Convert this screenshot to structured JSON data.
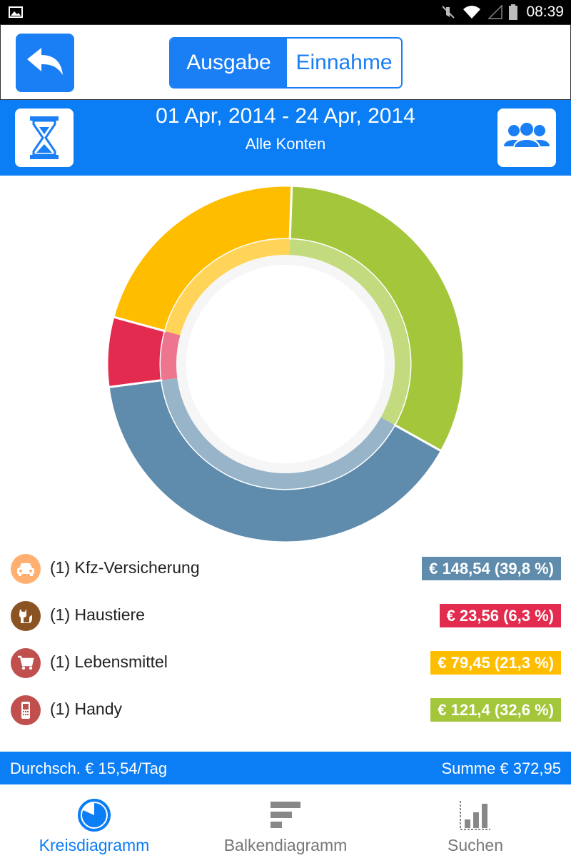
{
  "status_bar": {
    "time": "08:39"
  },
  "top_bar": {
    "tabs": [
      {
        "label": "Ausgabe",
        "active": true
      },
      {
        "label": "Einnahme",
        "active": false
      }
    ]
  },
  "header": {
    "date_range": "01 Apr, 2014 - 24 Apr, 2014",
    "account": "Alle Konten"
  },
  "chart_data": {
    "type": "pie",
    "style": "donut",
    "slices": [
      {
        "label": "Handy",
        "value": 121.4,
        "percent": 32.6,
        "color": "#a3c63a"
      },
      {
        "label": "Kfz-Versicherung",
        "value": 148.54,
        "percent": 39.8,
        "color": "#5f8bac"
      },
      {
        "label": "Haustiere",
        "value": 23.56,
        "percent": 6.3,
        "color": "#e32b4f"
      },
      {
        "label": "Lebensmittel",
        "value": 79.45,
        "percent": 21.3,
        "color": "#ffbd00"
      }
    ]
  },
  "legend": [
    {
      "label": "(1) Kfz-Versicherung",
      "value": "€ 148,54 (39,8 %)",
      "color": "#5f8bac",
      "icon": "car-icon",
      "icon_bg": "#ffb070"
    },
    {
      "label": "(1) Haustiere",
      "value": "€ 23,56 (6,3 %)",
      "color": "#e32b4f",
      "icon": "cat-icon",
      "icon_bg": "#8b5322"
    },
    {
      "label": "(1) Lebensmittel",
      "value": "€ 79,45 (21,3 %)",
      "color": "#ffbd00",
      "icon": "cart-icon",
      "icon_bg": "#c0504d"
    },
    {
      "label": "(1) Handy",
      "value": "€ 121,4 (32,6 %)",
      "color": "#a3c63a",
      "icon": "phone-icon",
      "icon_bg": "#c0504d"
    }
  ],
  "summary": {
    "average": "Durchsch. € 15,54/Tag",
    "total": "Summe € 372,95"
  },
  "bottom_nav": [
    {
      "label": "Kreisdiagramm",
      "icon": "pie-chart-icon",
      "active": true
    },
    {
      "label": "Balkendiagramm",
      "icon": "bar-chart-icon",
      "active": false
    },
    {
      "label": "Suchen",
      "icon": "search-chart-icon",
      "active": false
    }
  ],
  "colors": {
    "primary": "#0b7df5",
    "accent_button": "#1a7ef5"
  }
}
